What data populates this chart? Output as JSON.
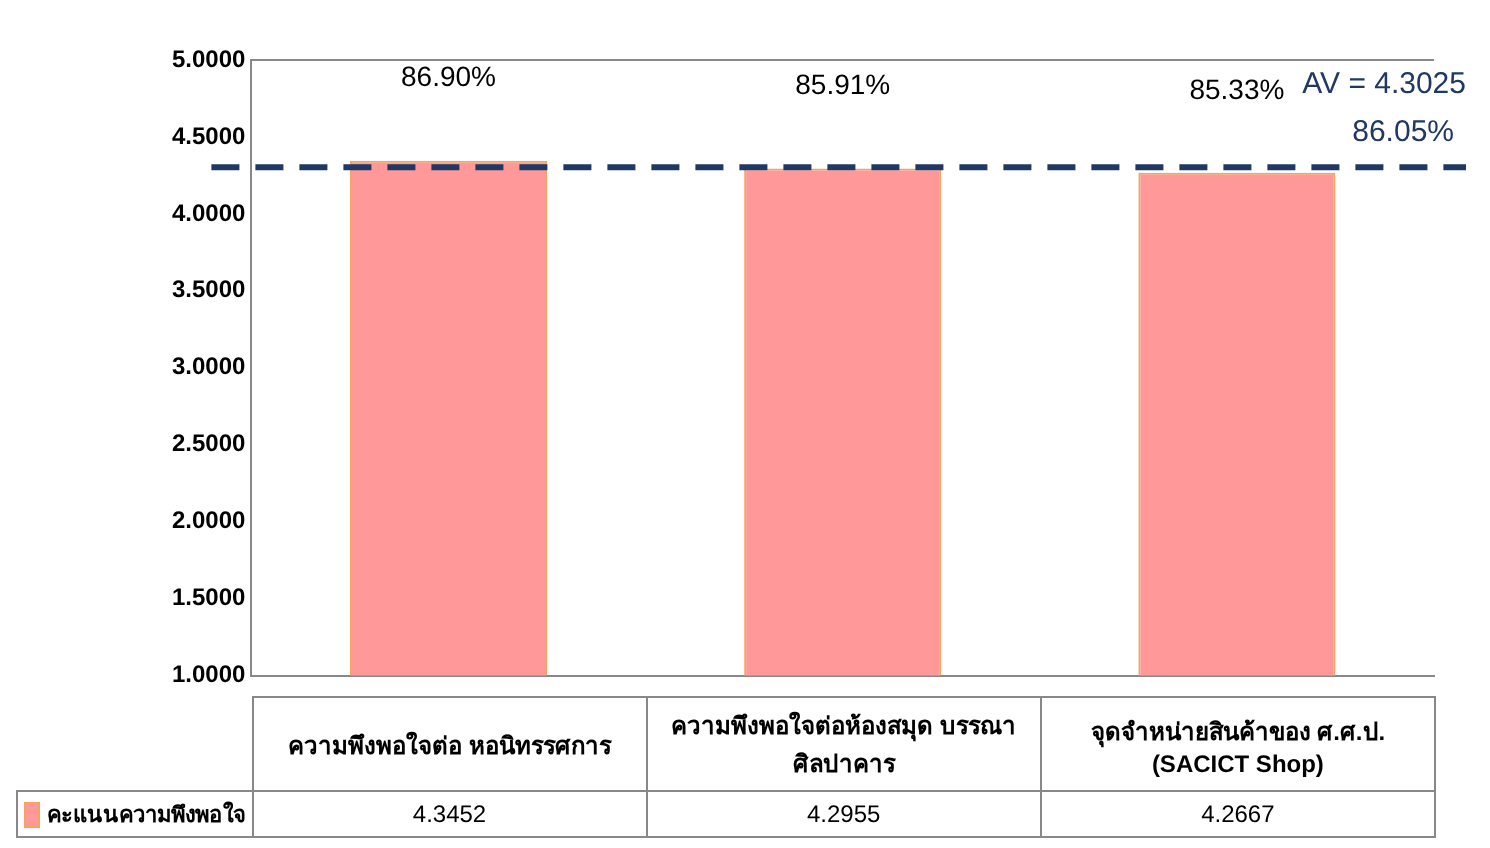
{
  "chart_data": {
    "type": "bar",
    "categories": [
      "ความพึงพอใจต่อ หอนิทรรศการ",
      "ความพึงพอใจต่อห้องสมุด บรรณาศิลปาคาร",
      "จุดจำหน่ายสินค้าของ ศ.ศ.ป. (SACICT Shop)"
    ],
    "series": [
      {
        "name": "คะแนนความพึงพอใจ",
        "color": "#ff9999",
        "values": [
          4.3452,
          4.2955,
          4.2667
        ]
      }
    ],
    "ylim": [
      1,
      5
    ],
    "yticks": [
      {
        "value": 1,
        "label": "1.0000"
      },
      {
        "value": 1.5,
        "label": "1.5000"
      },
      {
        "value": 2,
        "label": "2.0000"
      },
      {
        "value": 2.5,
        "label": "2.5000"
      },
      {
        "value": 3,
        "label": "3.0000"
      },
      {
        "value": 3.5,
        "label": "3.5000"
      },
      {
        "value": 4,
        "label": "4.0000"
      },
      {
        "value": 4.5,
        "label": "4.5000"
      },
      {
        "value": 5,
        "label": "5.0000"
      }
    ],
    "data_labels": true,
    "legend": "bottom",
    "grid": false,
    "ref_lines": [
      {
        "axis": "y",
        "value": 4.3025,
        "label": "AV = 4.3025",
        "color": "#1f3864",
        "line_style": "dashed"
      }
    ],
    "annotations": [
      {
        "text": "86.90%",
        "x": "ความพึงพอใจต่อ หอนิทรรศการ",
        "y": 4.3452
      },
      {
        "text": "85.91%",
        "x": "ความพึงพอใจต่อห้องสมุด บรรณาศิลปาคาร",
        "y": 4.2955
      },
      {
        "text": "85.33%",
        "x": "จุดจำหน่ายสินค้าของ ศ.ศ.ป. (SACICT Shop)",
        "y": 4.2667
      },
      "86.05%"
    ]
  }
}
